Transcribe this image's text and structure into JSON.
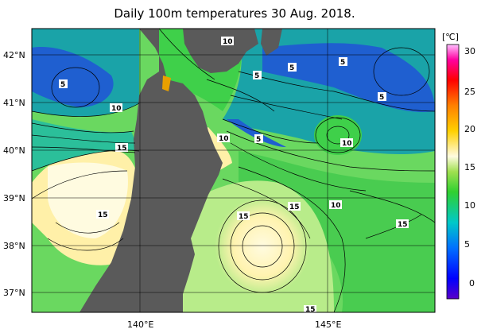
{
  "title": "Daily 100m temperatures 30 Aug. 2018.",
  "unit": "[℃]",
  "lat_labels": [
    "42°N",
    "41°N",
    "40°N",
    "39°N",
    "38°N",
    "37°N"
  ],
  "lon_labels": [
    "140°E",
    "145°E"
  ],
  "colorbar_ticks": [
    "30",
    "25",
    "20",
    "15",
    "10",
    "5",
    "0"
  ],
  "contour_labels": [
    "10",
    "5",
    "5",
    "5",
    "5",
    "5",
    "10",
    "10",
    "15",
    "10",
    "5",
    "10",
    "15",
    "15",
    "15",
    "10",
    "15",
    "15"
  ],
  "colors": {
    "land": "#5a5a5a",
    "cold": "#1f5fd0",
    "cyan": "#1aa3a8",
    "green": "#3fd04a",
    "lightgreen": "#8fe07a",
    "cream": "#fff0a8",
    "pale": "#fffbe0"
  }
}
